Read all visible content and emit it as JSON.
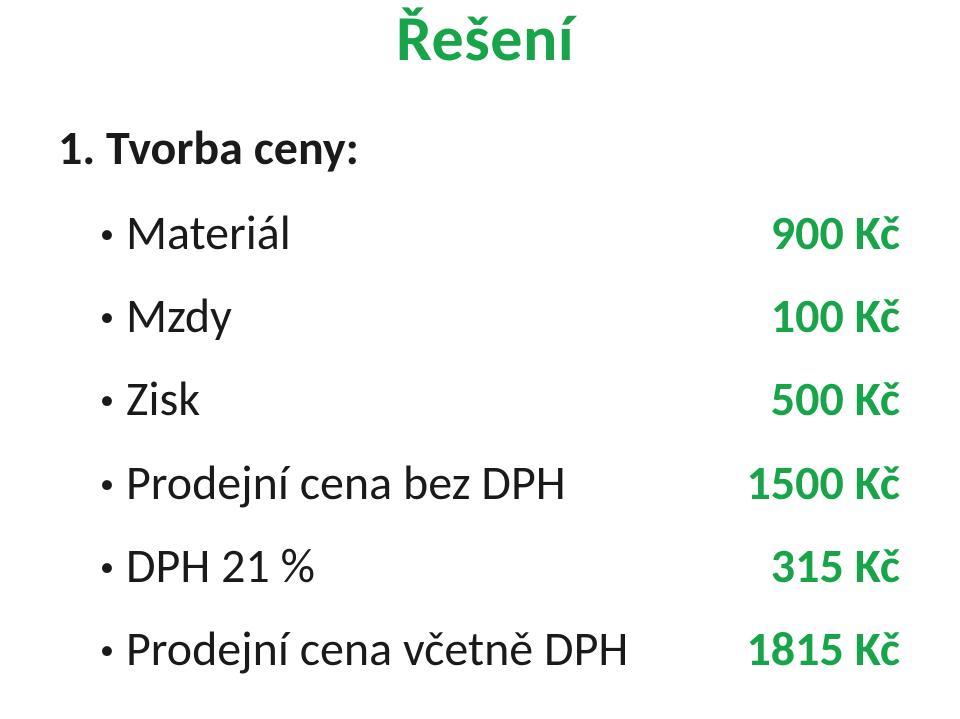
{
  "colors": {
    "accent": "#18a54a",
    "text": "#1a1a1a",
    "background": "#ffffff"
  },
  "title": "Řešení",
  "section_heading": "1. Tvorba ceny:",
  "rows": [
    {
      "label": "Materiál",
      "value": "900 Kč"
    },
    {
      "label": "Mzdy",
      "value": "100 Kč"
    },
    {
      "label": "Zisk",
      "value": "500 Kč"
    },
    {
      "label": "Prodejní cena bez DPH",
      "value": "1500 Kč"
    },
    {
      "label": "DPH 21 %",
      "value": "315 Kč"
    },
    {
      "label": "Prodejní cena včetně DPH",
      "value": "1815 Kč"
    }
  ]
}
